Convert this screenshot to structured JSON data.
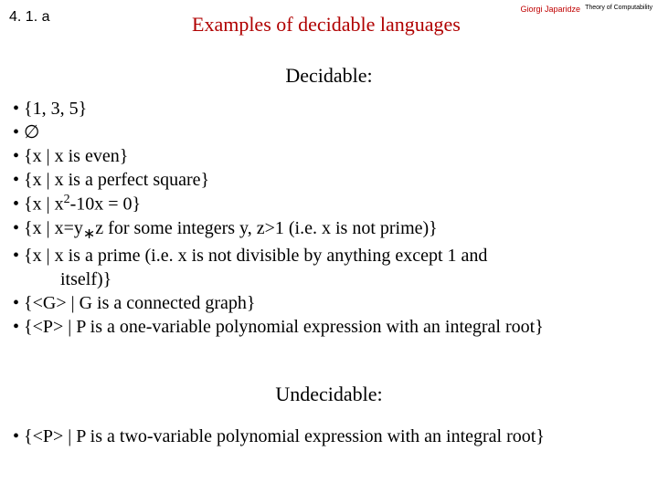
{
  "header": {
    "sectionNumber": "4. 1. a",
    "title": "Examples of decidable languages",
    "author": "Giorgi Japaridze",
    "courseName": "Theory of Computability"
  },
  "decidable": {
    "heading": "Decidable:",
    "items": [
      "• {1, 3, 5}",
      "• ∅",
      "• {x | x is even}",
      "• {x | x is a perfect square}",
      "• {x | x²-10x = 0}",
      "• {x | x=y∗z for some integers y, z>1 (i.e. x is not prime)}",
      "• {x | x is a prime (i.e. x is not divisible by anything except 1 and",
      "itself)}",
      "• {<G> | G is a connected graph}",
      "• {<P> | P is a one-variable polynomial expression with an integral root}"
    ]
  },
  "undecidable": {
    "heading": "Undecidable:",
    "items": [
      "• {<P> | P is a two-variable polynomial expression with an integral root}"
    ]
  },
  "colors": {
    "titleColor": "#b00000",
    "authorColor": "#c00000",
    "textColor": "#000000",
    "background": "#ffffff"
  },
  "typography": {
    "titleFontSize": 22,
    "bodyFontSize": 20,
    "sectionNumberFontSize": 16,
    "authorFontSize": 9,
    "courseNameFontSize": 7
  }
}
